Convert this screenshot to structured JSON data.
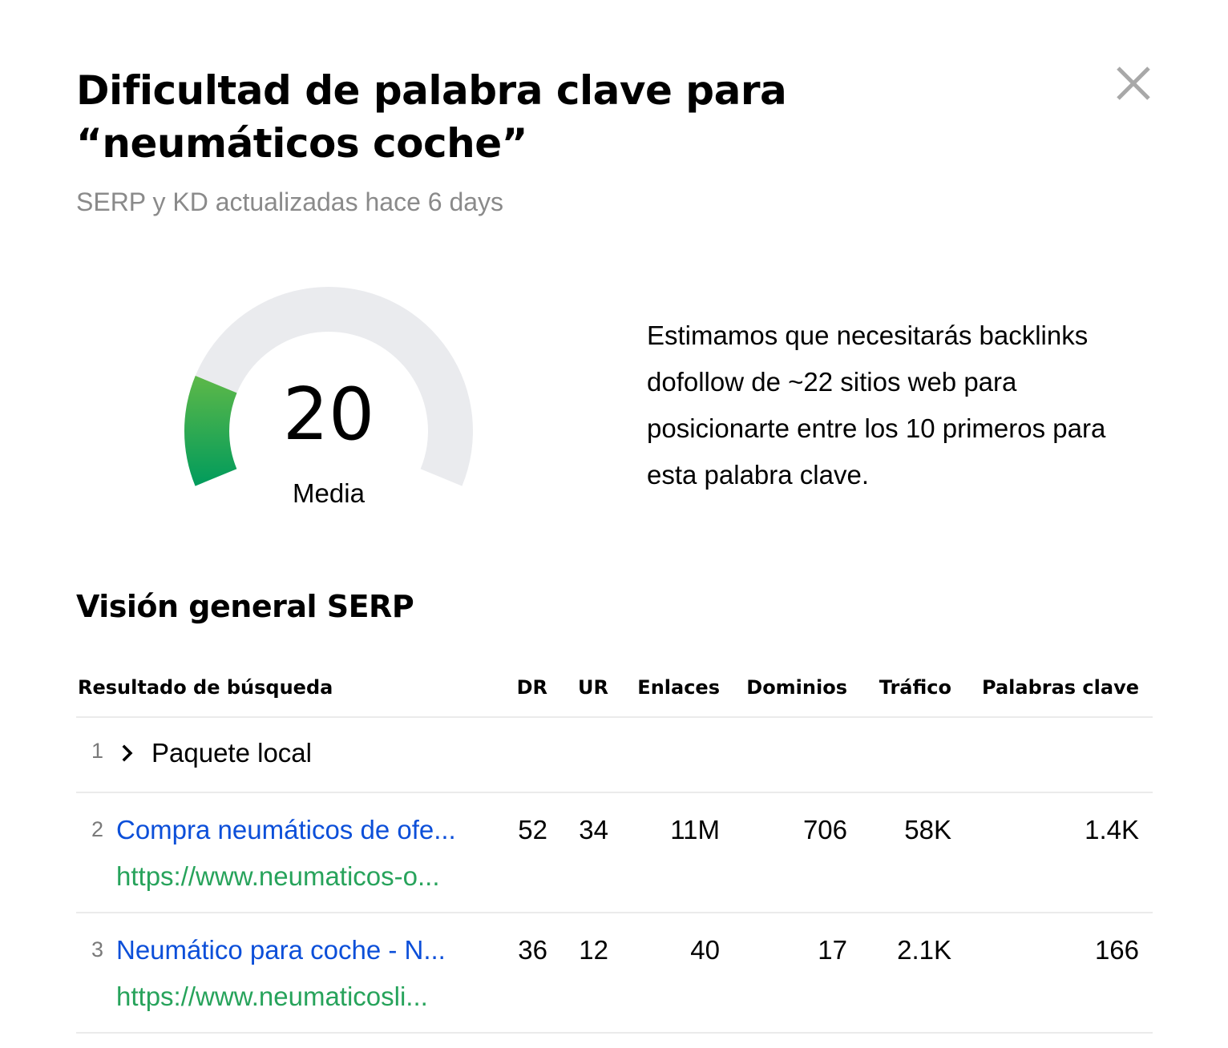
{
  "header": {
    "title": "Dificultad de palabra clave para “neumáticos coche”",
    "subtitle": "SERP y KD actualizadas hace 6 days",
    "close_icon": "close-icon"
  },
  "gauge": {
    "value": "20",
    "value_numeric": 20,
    "max": 100,
    "label": "Media",
    "colors": {
      "track": "#eaebee",
      "fill_start": "#009b5c",
      "fill_end": "#5db848"
    }
  },
  "description": "Estimamos que necesitarás backlinks dofollow de ~22 sitios web para posicionarte entre los 10 primeros para esta palabra clave.",
  "serp": {
    "title": "Visión general SERP",
    "columns": {
      "result": "Resultado de búsqueda",
      "dr": "DR",
      "ur": "UR",
      "links": "Enlaces",
      "domains": "Dominios",
      "traffic": "Tráfico",
      "keywords": "Palabras clave"
    },
    "rows": [
      {
        "rank": "1",
        "type": "local",
        "label": "Paquete local",
        "icon": "chevron-right-icon"
      },
      {
        "rank": "2",
        "type": "result",
        "title": "Compra neumáticos de ofe...",
        "url": "https://www.neumaticos-o...",
        "dr": "52",
        "ur": "34",
        "links": "11M",
        "domains": "706",
        "traffic": "58K",
        "keywords": "1.4K"
      },
      {
        "rank": "3",
        "type": "result",
        "title": "Neumático para coche - N...",
        "url": "https://www.neumaticosli...",
        "dr": "36",
        "ur": "12",
        "links": "40",
        "domains": "17",
        "traffic": "2.1K",
        "keywords": "166"
      }
    ]
  },
  "colors": {
    "link": "#0c4fd9",
    "url": "#27a35b",
    "muted_text": "#8a8a8a",
    "divider": "#ebebeb",
    "close_icon": "#a8a8a8"
  }
}
